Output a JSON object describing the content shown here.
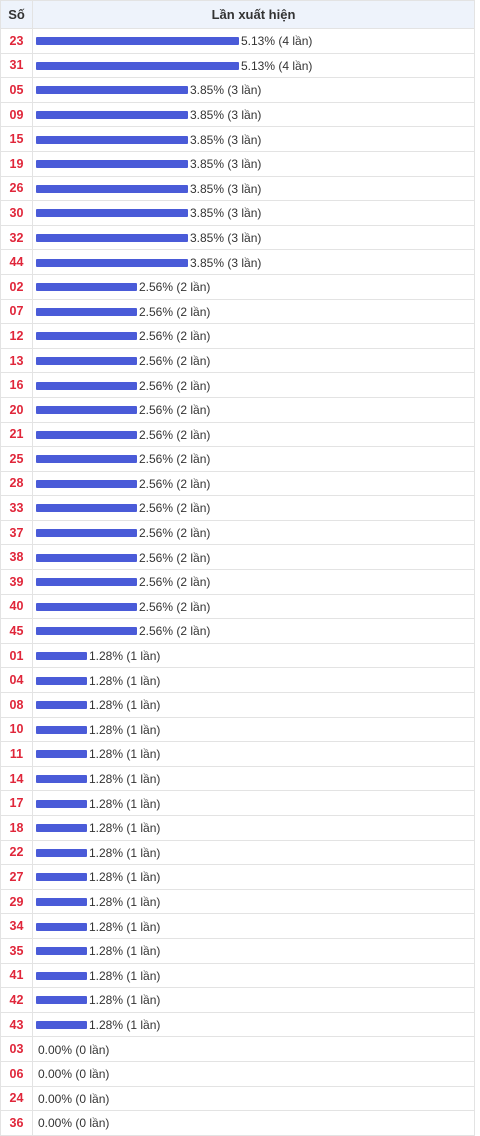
{
  "header": {
    "col_number": "Số",
    "col_frequency": "Lần xuất hiện"
  },
  "colors": {
    "number_text": "#e0263a",
    "bar": "#4a5bd8",
    "header_bg": "#eef3fb"
  },
  "chart_data": {
    "type": "bar",
    "orientation": "horizontal",
    "xlim": [
      0,
      5.13
    ],
    "rows": [
      {
        "number": "23",
        "percent": 5.13,
        "count": 4,
        "label": "5.13% (4 lần)"
      },
      {
        "number": "31",
        "percent": 5.13,
        "count": 4,
        "label": "5.13% (4 lần)"
      },
      {
        "number": "05",
        "percent": 3.85,
        "count": 3,
        "label": "3.85% (3 lần)"
      },
      {
        "number": "09",
        "percent": 3.85,
        "count": 3,
        "label": "3.85% (3 lần)"
      },
      {
        "number": "15",
        "percent": 3.85,
        "count": 3,
        "label": "3.85% (3 lần)"
      },
      {
        "number": "19",
        "percent": 3.85,
        "count": 3,
        "label": "3.85% (3 lần)"
      },
      {
        "number": "26",
        "percent": 3.85,
        "count": 3,
        "label": "3.85% (3 lần)"
      },
      {
        "number": "30",
        "percent": 3.85,
        "count": 3,
        "label": "3.85% (3 lần)"
      },
      {
        "number": "32",
        "percent": 3.85,
        "count": 3,
        "label": "3.85% (3 lần)"
      },
      {
        "number": "44",
        "percent": 3.85,
        "count": 3,
        "label": "3.85% (3 lần)"
      },
      {
        "number": "02",
        "percent": 2.56,
        "count": 2,
        "label": "2.56% (2 lần)"
      },
      {
        "number": "07",
        "percent": 2.56,
        "count": 2,
        "label": "2.56% (2 lần)"
      },
      {
        "number": "12",
        "percent": 2.56,
        "count": 2,
        "label": "2.56% (2 lần)"
      },
      {
        "number": "13",
        "percent": 2.56,
        "count": 2,
        "label": "2.56% (2 lần)"
      },
      {
        "number": "16",
        "percent": 2.56,
        "count": 2,
        "label": "2.56% (2 lần)"
      },
      {
        "number": "20",
        "percent": 2.56,
        "count": 2,
        "label": "2.56% (2 lần)"
      },
      {
        "number": "21",
        "percent": 2.56,
        "count": 2,
        "label": "2.56% (2 lần)"
      },
      {
        "number": "25",
        "percent": 2.56,
        "count": 2,
        "label": "2.56% (2 lần)"
      },
      {
        "number": "28",
        "percent": 2.56,
        "count": 2,
        "label": "2.56% (2 lần)"
      },
      {
        "number": "33",
        "percent": 2.56,
        "count": 2,
        "label": "2.56% (2 lần)"
      },
      {
        "number": "37",
        "percent": 2.56,
        "count": 2,
        "label": "2.56% (2 lần)"
      },
      {
        "number": "38",
        "percent": 2.56,
        "count": 2,
        "label": "2.56% (2 lần)"
      },
      {
        "number": "39",
        "percent": 2.56,
        "count": 2,
        "label": "2.56% (2 lần)"
      },
      {
        "number": "40",
        "percent": 2.56,
        "count": 2,
        "label": "2.56% (2 lần)"
      },
      {
        "number": "45",
        "percent": 2.56,
        "count": 2,
        "label": "2.56% (2 lần)"
      },
      {
        "number": "01",
        "percent": 1.28,
        "count": 1,
        "label": "1.28% (1 lần)"
      },
      {
        "number": "04",
        "percent": 1.28,
        "count": 1,
        "label": "1.28% (1 lần)"
      },
      {
        "number": "08",
        "percent": 1.28,
        "count": 1,
        "label": "1.28% (1 lần)"
      },
      {
        "number": "10",
        "percent": 1.28,
        "count": 1,
        "label": "1.28% (1 lần)"
      },
      {
        "number": "11",
        "percent": 1.28,
        "count": 1,
        "label": "1.28% (1 lần)"
      },
      {
        "number": "14",
        "percent": 1.28,
        "count": 1,
        "label": "1.28% (1 lần)"
      },
      {
        "number": "17",
        "percent": 1.28,
        "count": 1,
        "label": "1.28% (1 lần)"
      },
      {
        "number": "18",
        "percent": 1.28,
        "count": 1,
        "label": "1.28% (1 lần)"
      },
      {
        "number": "22",
        "percent": 1.28,
        "count": 1,
        "label": "1.28% (1 lần)"
      },
      {
        "number": "27",
        "percent": 1.28,
        "count": 1,
        "label": "1.28% (1 lần)"
      },
      {
        "number": "29",
        "percent": 1.28,
        "count": 1,
        "label": "1.28% (1 lần)"
      },
      {
        "number": "34",
        "percent": 1.28,
        "count": 1,
        "label": "1.28% (1 lần)"
      },
      {
        "number": "35",
        "percent": 1.28,
        "count": 1,
        "label": "1.28% (1 lần)"
      },
      {
        "number": "41",
        "percent": 1.28,
        "count": 1,
        "label": "1.28% (1 lần)"
      },
      {
        "number": "42",
        "percent": 1.28,
        "count": 1,
        "label": "1.28% (1 lần)"
      },
      {
        "number": "43",
        "percent": 1.28,
        "count": 1,
        "label": "1.28% (1 lần)"
      },
      {
        "number": "03",
        "percent": 0.0,
        "count": 0,
        "label": "0.00% (0 lần)"
      },
      {
        "number": "06",
        "percent": 0.0,
        "count": 0,
        "label": "0.00% (0 lần)"
      },
      {
        "number": "24",
        "percent": 0.0,
        "count": 0,
        "label": "0.00% (0 lần)"
      },
      {
        "number": "36",
        "percent": 0.0,
        "count": 0,
        "label": "0.00% (0 lần)"
      }
    ]
  }
}
